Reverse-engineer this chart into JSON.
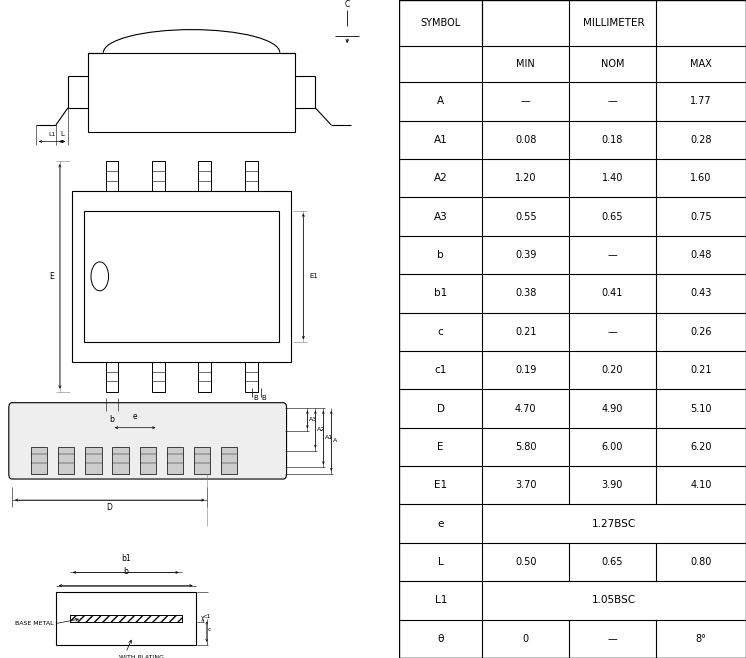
{
  "table_rows": [
    [
      "A",
      "—",
      "—",
      "1.77"
    ],
    [
      "A1",
      "0.08",
      "0.18",
      "0.28"
    ],
    [
      "A2",
      "1.20",
      "1.40",
      "1.60"
    ],
    [
      "A3",
      "0.55",
      "0.65",
      "0.75"
    ],
    [
      "b",
      "0.39",
      "—",
      "0.48"
    ],
    [
      "b1",
      "0.38",
      "0.41",
      "0.43"
    ],
    [
      "c",
      "0.21",
      "—",
      "0.26"
    ],
    [
      "c1",
      "0.19",
      "0.20",
      "0.21"
    ],
    [
      "D",
      "4.70",
      "4.90",
      "5.10"
    ],
    [
      "E",
      "5.80",
      "6.00",
      "6.20"
    ],
    [
      "E1",
      "3.70",
      "3.90",
      "4.10"
    ],
    [
      "e",
      "1.27BSC",
      "",
      ""
    ],
    [
      "L",
      "0.50",
      "0.65",
      "0.80"
    ],
    [
      "L1",
      "1.05BSC",
      "",
      ""
    ],
    [
      "θ",
      "0",
      "—",
      "8°"
    ]
  ],
  "bg_color": "#ffffff",
  "line_color": "#000000"
}
